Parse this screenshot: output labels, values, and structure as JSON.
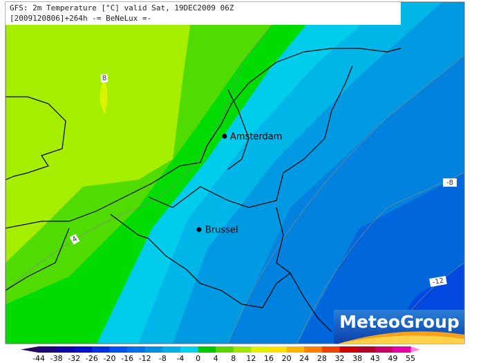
{
  "header": {
    "line1": "GFS: 2m Temperature [°C] valid Sat, 19DEC2009 06Z",
    "line2": "[2009120806]+264h -= BeNeLux =-"
  },
  "cities": [
    {
      "name": "Amsterdam"
    },
    {
      "name": "Brussel"
    }
  ],
  "contour_labels": [
    "8",
    "4",
    "-8",
    "-12"
  ],
  "colorbar": {
    "labels": [
      -44,
      -38,
      -32,
      -26,
      -20,
      -16,
      -12,
      -8,
      -4,
      0,
      4,
      8,
      12,
      16,
      20,
      24,
      28,
      32,
      38,
      43,
      49,
      55
    ],
    "colors": [
      "#1c0078",
      "#1000a8",
      "#0010c8",
      "#0030e0",
      "#0050f0",
      "#0070e8",
      "#0090e0",
      "#00b0e4",
      "#00d4ec",
      "#00c800",
      "#5cd400",
      "#a0e400",
      "#e0f000",
      "#ffe000",
      "#ffb400",
      "#ff8000",
      "#f04000",
      "#d00000",
      "#b00028",
      "#c80068",
      "#e800a8"
    ],
    "low_color": "#24005c",
    "high_color": "#ff80e0"
  },
  "logo": {
    "text": "MeteoGroup"
  }
}
